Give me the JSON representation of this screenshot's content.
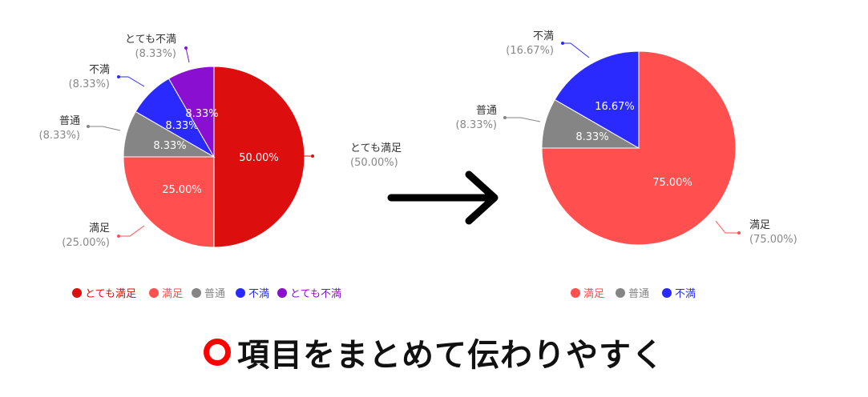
{
  "colors": {
    "とても満足": "#dd0e0e",
    "満足": "#ff4f4f",
    "普通": "#858585",
    "不満": "#2a2aff",
    "とても不満": "#8a0fd0"
  },
  "caption": {
    "icon": "red-circle-icon",
    "text": "項目をまとめて伝わりやすく"
  },
  "arrow": {
    "icon": "right-arrow-icon"
  },
  "chart_data": [
    {
      "type": "pie",
      "slices": [
        {
          "name": "とても満足",
          "value": 50.0,
          "label": "50.00%",
          "callout": "(50.00%)"
        },
        {
          "name": "満足",
          "value": 25.0,
          "label": "25.00%",
          "callout": "(25.00%)"
        },
        {
          "name": "普通",
          "value": 8.33,
          "label": "8.33%",
          "callout": "(8.33%)"
        },
        {
          "name": "不満",
          "value": 8.33,
          "label": "8.33%",
          "callout": "(8.33%)"
        },
        {
          "name": "とても不満",
          "value": 8.33,
          "label": "8.33%",
          "callout": "(8.33%)"
        }
      ],
      "legend": [
        "とても満足",
        "満足",
        "普通",
        "不満",
        "とても不満"
      ],
      "legend_position": "bottom"
    },
    {
      "type": "pie",
      "slices": [
        {
          "name": "満足",
          "value": 75.0,
          "label": "75.00%",
          "callout": "(75.00%)"
        },
        {
          "name": "普通",
          "value": 8.33,
          "label": "8.33%",
          "callout": "(8.33%)"
        },
        {
          "name": "不満",
          "value": 16.67,
          "label": "16.67%",
          "callout": "(16.67%)"
        }
      ],
      "legend": [
        "満足",
        "普通",
        "不満"
      ],
      "legend_position": "bottom"
    }
  ]
}
